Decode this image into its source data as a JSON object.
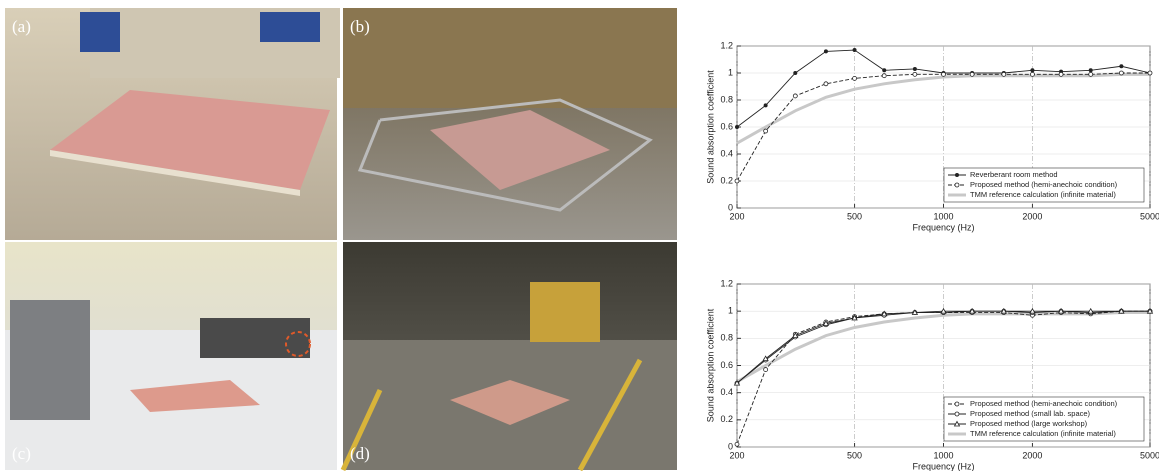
{
  "photos": {
    "labels": [
      "(a)",
      "(b)",
      "(c)",
      "(d)"
    ]
  },
  "chart_data": [
    {
      "type": "line",
      "xlabel": "Frequency (Hz)",
      "ylabel": "Sound absorption coefficient",
      "xlog": true,
      "grid": true,
      "legend": "lower right",
      "xlim": [
        200,
        5000
      ],
      "xticks": [
        200,
        500,
        1000,
        2000,
        5000
      ],
      "ylim": [
        0,
        1.2
      ],
      "yticks": [
        0,
        0.2,
        0.4,
        0.6,
        0.8,
        1,
        1.2
      ],
      "x": [
        200,
        250,
        315,
        400,
        500,
        630,
        800,
        1000,
        1250,
        1600,
        2000,
        2500,
        3150,
        4000,
        5000
      ],
      "series": [
        {
          "name": "Reverberant room method",
          "color": "#222222",
          "line_style": "solid",
          "marker": "circle",
          "values": [
            0.6,
            0.76,
            1.0,
            1.16,
            1.17,
            1.02,
            1.03,
            1.0,
            1.0,
            1.0,
            1.02,
            1.01,
            1.02,
            1.05,
            1.0
          ]
        },
        {
          "name": "Proposed method (hemi-anechoic condition)",
          "color": "#222222",
          "line_style": "dashed",
          "marker": "open-circle",
          "values": [
            0.2,
            0.57,
            0.83,
            0.92,
            0.96,
            0.98,
            0.99,
            0.99,
            0.99,
            0.99,
            0.99,
            0.99,
            0.99,
            1.0,
            1.0
          ]
        },
        {
          "name": "TMM reference calculation (infinite material)",
          "color": "#c8c8c8",
          "line_style": "thick",
          "marker": "none",
          "values": [
            0.48,
            0.6,
            0.72,
            0.82,
            0.88,
            0.92,
            0.95,
            0.97,
            0.98,
            0.98,
            0.98,
            0.98,
            0.98,
            0.99,
            0.99
          ]
        }
      ]
    },
    {
      "type": "line",
      "xlabel": "Frequency (Hz)",
      "ylabel": "Sound absorption coefficient",
      "xlog": true,
      "grid": true,
      "legend": "lower right",
      "xlim": [
        200,
        5000
      ],
      "xticks": [
        200,
        500,
        1000,
        2000,
        5000
      ],
      "ylim": [
        0,
        1.2
      ],
      "yticks": [
        0,
        0.2,
        0.4,
        0.6,
        0.8,
        1,
        1.2
      ],
      "x": [
        200,
        250,
        315,
        400,
        500,
        630,
        800,
        1000,
        1250,
        1600,
        2000,
        2500,
        3150,
        4000,
        5000
      ],
      "series": [
        {
          "name": "Proposed method (hemi-anechoic condition)",
          "color": "#222222",
          "line_style": "dashed",
          "marker": "open-circle",
          "values": [
            0.02,
            0.57,
            0.83,
            0.92,
            0.96,
            0.98,
            0.99,
            0.99,
            0.99,
            0.99,
            0.97,
            0.99,
            0.98,
            1.0,
            1.0
          ]
        },
        {
          "name": "Proposed method (small lab. space)",
          "color": "#222222",
          "line_style": "solid",
          "marker": "open-circle",
          "values": [
            0.47,
            0.64,
            0.81,
            0.9,
            0.95,
            0.97,
            0.99,
            0.99,
            1.0,
            1.0,
            0.99,
            1.0,
            0.99,
            1.0,
            1.0
          ]
        },
        {
          "name": "Proposed method (large workshop)",
          "color": "#222222",
          "line_style": "solid",
          "marker": "triangle",
          "values": [
            0.47,
            0.65,
            0.82,
            0.91,
            0.95,
            0.98,
            0.99,
            1.0,
            1.0,
            1.0,
            1.0,
            1.0,
            1.0,
            1.0,
            1.0
          ]
        },
        {
          "name": "TMM reference calculation (infinite material)",
          "color": "#c8c8c8",
          "line_style": "thick",
          "marker": "none",
          "values": [
            0.48,
            0.6,
            0.72,
            0.82,
            0.88,
            0.92,
            0.95,
            0.97,
            0.98,
            0.98,
            0.98,
            0.98,
            0.98,
            0.99,
            0.99
          ]
        }
      ]
    }
  ]
}
